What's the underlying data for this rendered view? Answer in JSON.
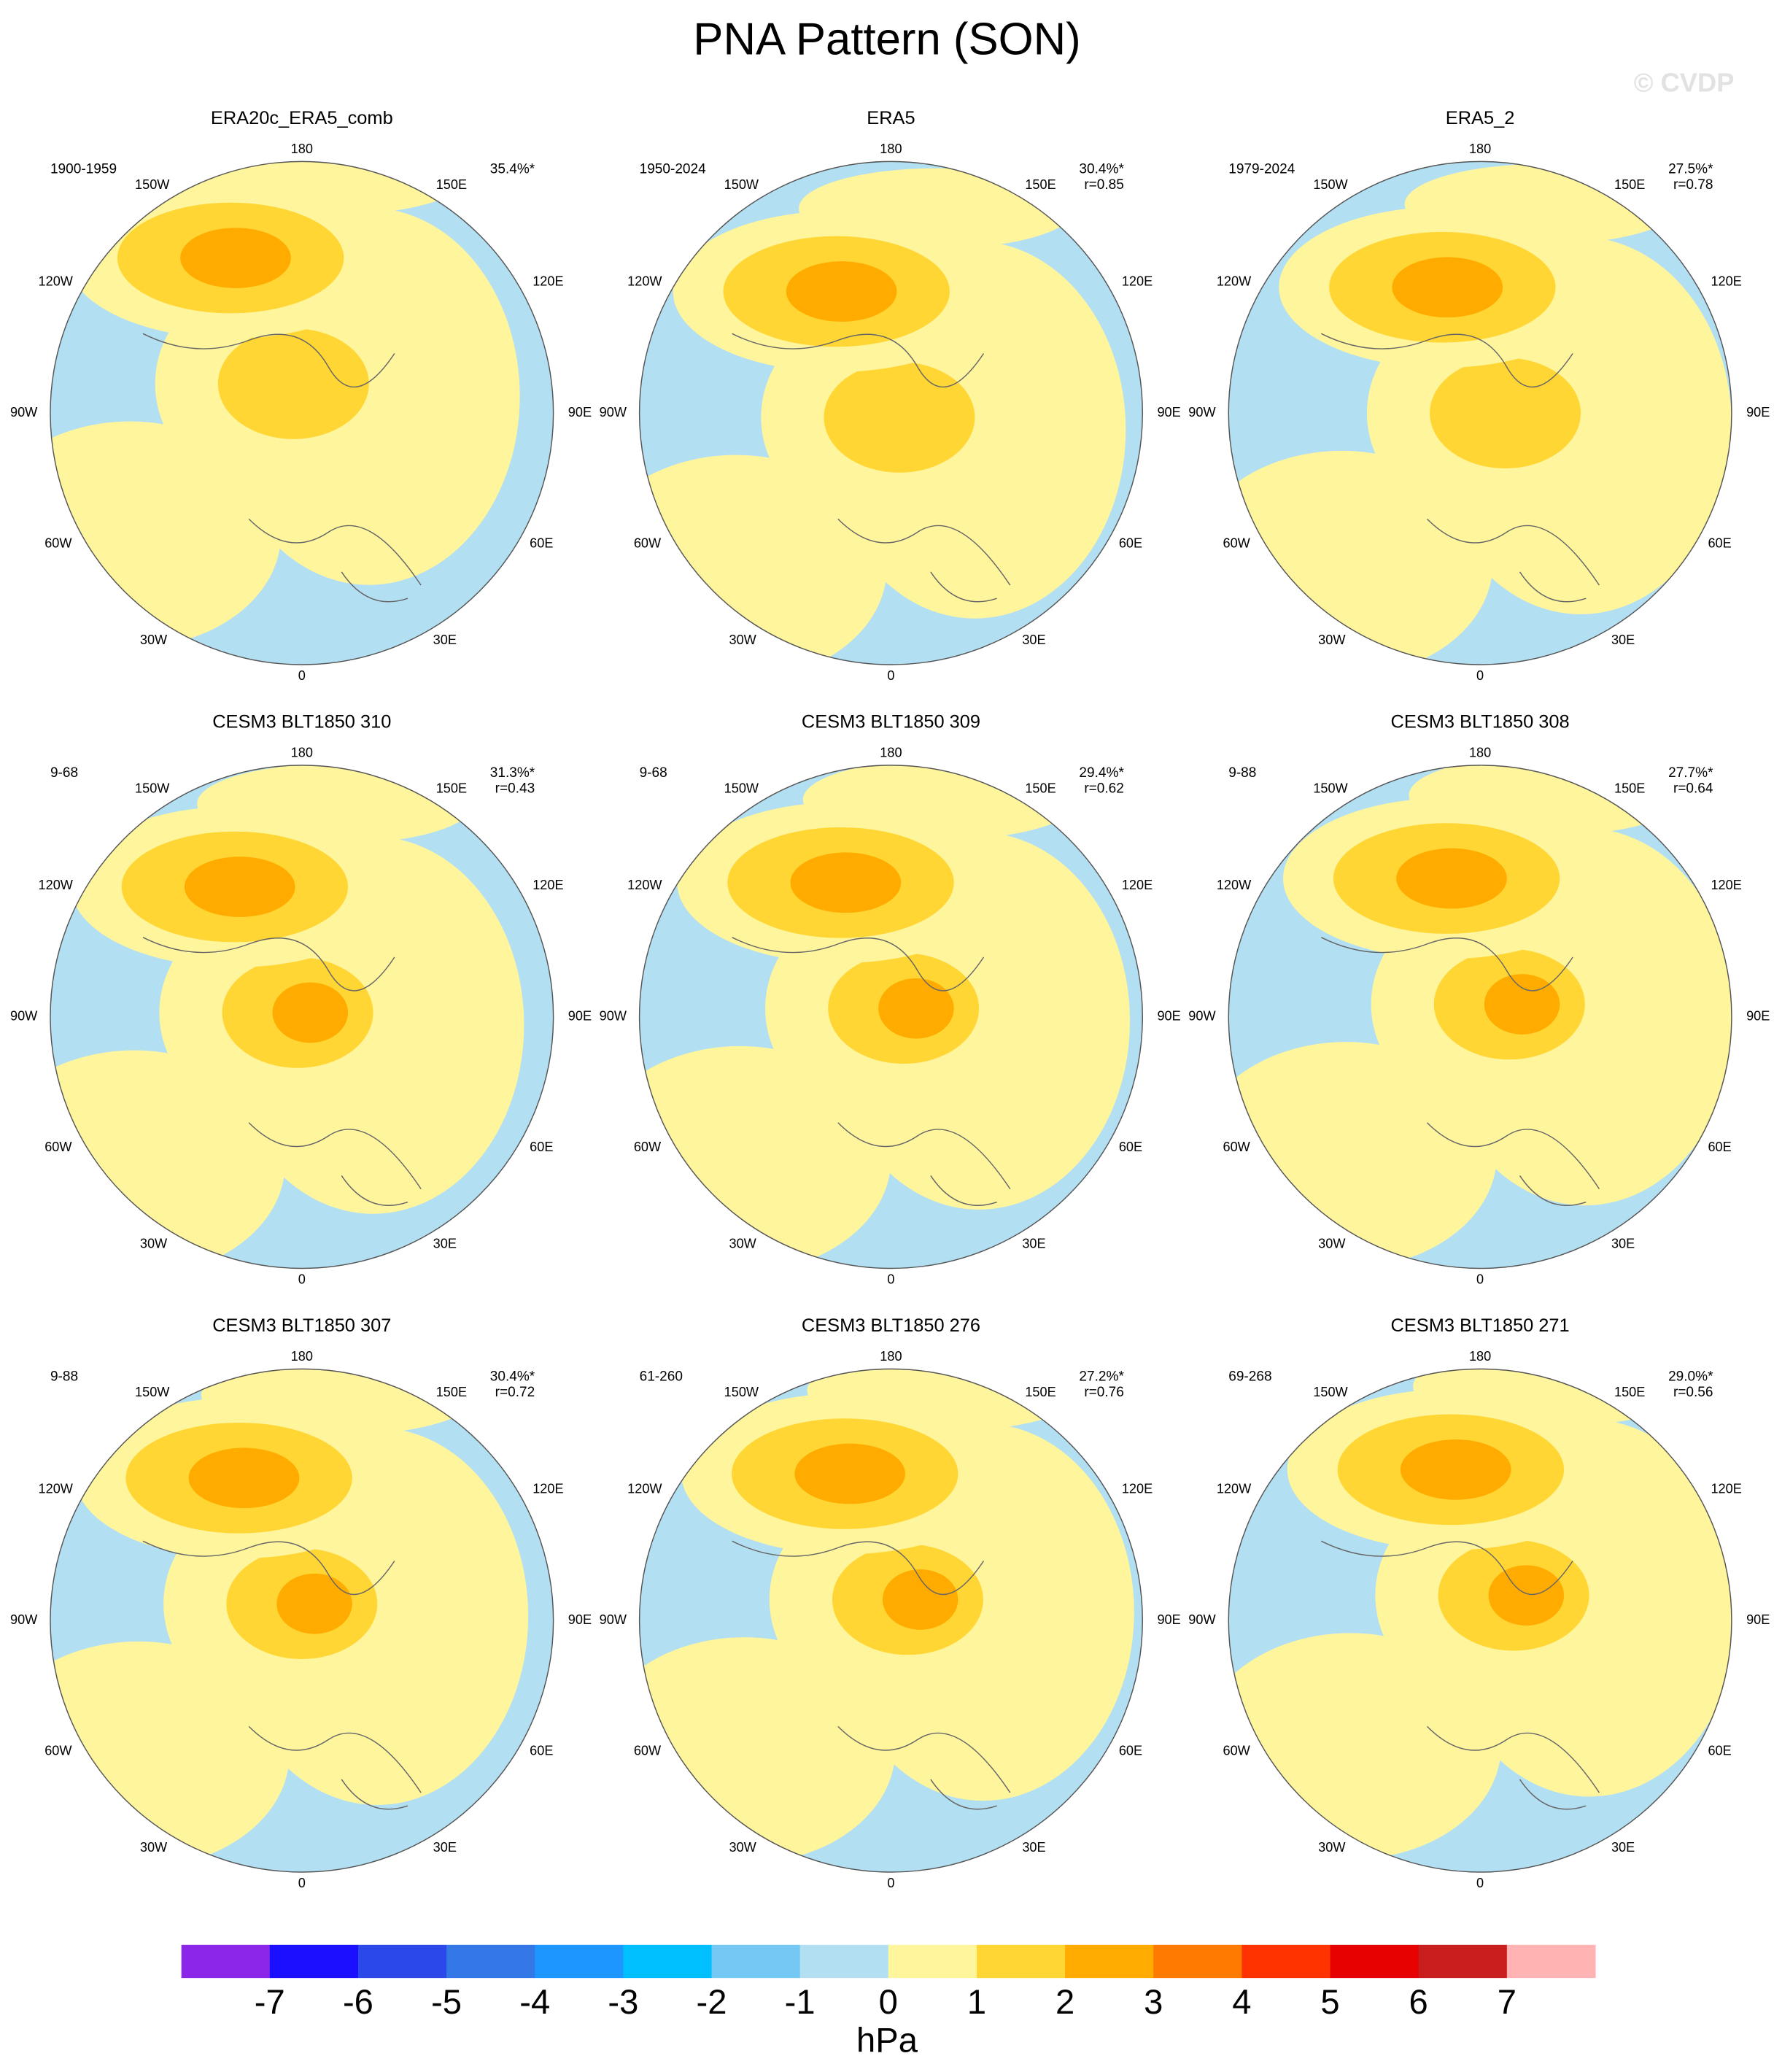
{
  "title": "PNA Pattern (SON)",
  "watermark": "© CVDP",
  "longitudes": [
    "180",
    "150E",
    "120E",
    "90E",
    "60E",
    "30E",
    "0",
    "30W",
    "60W",
    "90W",
    "120W",
    "150W"
  ],
  "panels": [
    {
      "title": "ERA20c_ERA5_comb",
      "period": "1900-1959",
      "variance": "35.4%*"
    },
    {
      "title": "ERA5",
      "period": "1950-2024",
      "variance": "30.4%*",
      "r": "r=0.85"
    },
    {
      "title": "ERA5_2",
      "period": "1979-2024",
      "variance": "27.5%*",
      "r": "r=0.78"
    },
    {
      "title": "CESM3 BLT1850 310",
      "period": "9-68",
      "variance": "31.3%*",
      "r": "r=0.43"
    },
    {
      "title": "CESM3 BLT1850 309",
      "period": "9-68",
      "variance": "29.4%*",
      "r": "r=0.62"
    },
    {
      "title": "CESM3 BLT1850 308",
      "period": "9-88",
      "variance": "27.7%*",
      "r": "r=0.64"
    },
    {
      "title": "CESM3 BLT1850 307",
      "period": "9-88",
      "variance": "30.4%*",
      "r": "r=0.72"
    },
    {
      "title": "CESM3 BLT1850 276",
      "period": "61-260",
      "variance": "27.2%*",
      "r": "r=0.76"
    },
    {
      "title": "CESM3 BLT1850 271",
      "period": "69-268",
      "variance": "29.0%*",
      "r": "r=0.56"
    }
  ],
  "colorbar": {
    "label": "hPa",
    "levels": [
      -7,
      -6,
      -5,
      -4,
      -3,
      -2,
      -1,
      0,
      1,
      2,
      3,
      4,
      5,
      6,
      7
    ],
    "colors": [
      "#8c26e8",
      "#1a0fff",
      "#2b48e8",
      "#3478e8",
      "#1e96ff",
      "#00bfff",
      "#74c8f3",
      "#b3dff2",
      "#fff59d",
      "#ffd633",
      "#ffab00",
      "#ff7a00",
      "#ff3300",
      "#e60000",
      "#c81e1e",
      "#ffb3b3"
    ]
  }
}
